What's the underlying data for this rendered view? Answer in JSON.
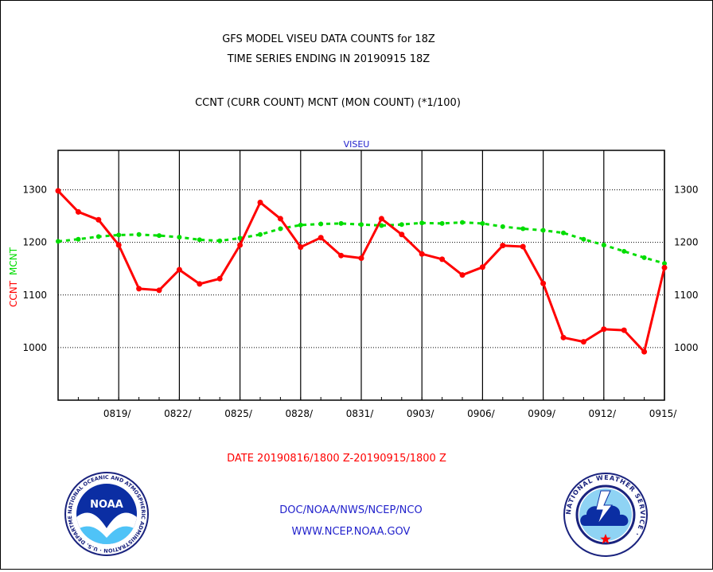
{
  "header": {
    "title_line1": "GFS MODEL VISEU DATA COUNTS for 18Z",
    "title_line2": "TIME SERIES ENDING IN 20190915 18Z",
    "subtitle": "CCNT (CURR COUNT) MCNT (MON COUNT) (*1/100)"
  },
  "footer": {
    "date_range": "DATE 20190816/1800 Z-20190915/1800 Z",
    "org_line": "DOC/NOAA/NWS/NCEP/NCO",
    "url_line": "WWW.NCEP.NOAA.GOV"
  },
  "logos": {
    "noaa_text": "NOAA",
    "noaa_ring_text": "NATIONAL OCEANIC AND ATMOSPHERIC ADMINISTRATION · U.S. DEPARTMENT OF COMMERCE ·",
    "nws_ring_text": "NATIONAL WEATHER SERVICE ·"
  },
  "colors": {
    "ccnt": "#ff0000",
    "mcnt": "#00dd00",
    "title": "#000000",
    "blue_text": "#2222cc"
  },
  "chart_data": {
    "type": "line",
    "title": "VISEU",
    "ylabel_left": [
      "CCNT",
      "MCNT"
    ],
    "ylim": [
      900,
      1375
    ],
    "yticks": [
      1000,
      1100,
      1200,
      1300
    ],
    "grid": true,
    "x_days": 30,
    "x_tick_labels": [
      "0819/",
      "0822/",
      "0825/",
      "0828/",
      "0831/",
      "0903/",
      "0906/",
      "0909/",
      "0912/",
      "0915/"
    ],
    "x_tick_days": [
      3,
      6,
      9,
      12,
      15,
      18,
      21,
      24,
      27,
      30
    ],
    "series": [
      {
        "name": "CCNT",
        "values": [
          1298,
          1258,
          1243,
          1195,
          1112,
          1109,
          1148,
          1121,
          1131,
          1195,
          1276,
          1245,
          1191,
          1209,
          1175,
          1170,
          1245,
          1215,
          1178,
          1168,
          1138,
          1153,
          1194,
          1192,
          1122,
          1019,
          1011,
          1035,
          1033,
          992,
          1152
        ]
      },
      {
        "name": "MCNT",
        "values": [
          1202,
          1206,
          1211,
          1214,
          1215,
          1213,
          1210,
          1205,
          1203,
          1208,
          1215,
          1226,
          1233,
          1235,
          1236,
          1234,
          1232,
          1234,
          1237,
          1236,
          1238,
          1236,
          1230,
          1226,
          1223,
          1218,
          1206,
          1195,
          1183,
          1171,
          1160
        ]
      }
    ]
  }
}
